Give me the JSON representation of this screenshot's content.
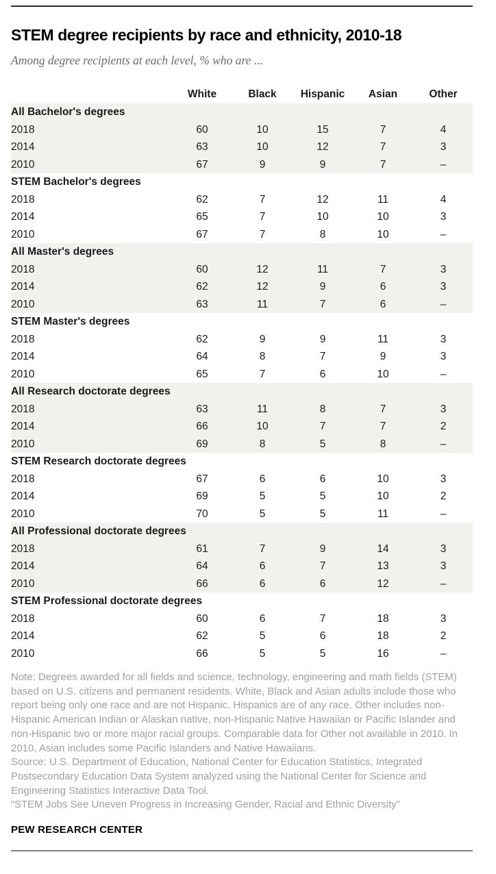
{
  "chart_data": {
    "type": "table",
    "title": "STEM degree recipients by race and ethnicity, 2010-18",
    "subtitle": "Among degree recipients at each level, % who are ...",
    "columns": [
      "White",
      "Black",
      "Hispanic",
      "Asian",
      "Other"
    ],
    "missing_value_symbol": "–",
    "values_unit": "percent",
    "sections": [
      {
        "label": "All Bachelor's degrees",
        "shaded": true,
        "rows": [
          {
            "year": "2018",
            "values": [
              "60",
              "10",
              "15",
              "7",
              "4"
            ]
          },
          {
            "year": "2014",
            "values": [
              "63",
              "10",
              "12",
              "7",
              "3"
            ]
          },
          {
            "year": "2010",
            "values": [
              "67",
              "9",
              "9",
              "7",
              "–"
            ]
          }
        ]
      },
      {
        "label": "STEM Bachelor's degrees",
        "shaded": false,
        "rows": [
          {
            "year": "2018",
            "values": [
              "62",
              "7",
              "12",
              "11",
              "4"
            ]
          },
          {
            "year": "2014",
            "values": [
              "65",
              "7",
              "10",
              "10",
              "3"
            ]
          },
          {
            "year": "2010",
            "values": [
              "67",
              "7",
              "8",
              "10",
              "–"
            ]
          }
        ]
      },
      {
        "label": "All Master's degrees",
        "shaded": true,
        "rows": [
          {
            "year": "2018",
            "values": [
              "60",
              "12",
              "11",
              "7",
              "3"
            ]
          },
          {
            "year": "2014",
            "values": [
              "62",
              "12",
              "9",
              "6",
              "3"
            ]
          },
          {
            "year": "2010",
            "values": [
              "63",
              "11",
              "7",
              "6",
              "–"
            ]
          }
        ]
      },
      {
        "label": "STEM Master's degrees",
        "shaded": false,
        "rows": [
          {
            "year": "2018",
            "values": [
              "62",
              "9",
              "9",
              "11",
              "3"
            ]
          },
          {
            "year": "2014",
            "values": [
              "64",
              "8",
              "7",
              "9",
              "3"
            ]
          },
          {
            "year": "2010",
            "values": [
              "65",
              "7",
              "6",
              "10",
              "–"
            ]
          }
        ]
      },
      {
        "label": "All Research doctorate degrees",
        "shaded": true,
        "rows": [
          {
            "year": "2018",
            "values": [
              "63",
              "11",
              "8",
              "7",
              "3"
            ]
          },
          {
            "year": "2014",
            "values": [
              "66",
              "10",
              "7",
              "7",
              "2"
            ]
          },
          {
            "year": "2010",
            "values": [
              "69",
              "8",
              "5",
              "8",
              "–"
            ]
          }
        ]
      },
      {
        "label": "STEM Research doctorate degrees",
        "shaded": false,
        "rows": [
          {
            "year": "2018",
            "values": [
              "67",
              "6",
              "6",
              "10",
              "3"
            ]
          },
          {
            "year": "2014",
            "values": [
              "69",
              "5",
              "5",
              "10",
              "2"
            ]
          },
          {
            "year": "2010",
            "values": [
              "70",
              "5",
              "5",
              "11",
              "–"
            ]
          }
        ]
      },
      {
        "label": "All Professional doctorate degrees",
        "shaded": true,
        "rows": [
          {
            "year": "2018",
            "values": [
              "61",
              "7",
              "9",
              "14",
              "3"
            ]
          },
          {
            "year": "2014",
            "values": [
              "64",
              "6",
              "7",
              "13",
              "3"
            ]
          },
          {
            "year": "2010",
            "values": [
              "66",
              "6",
              "6",
              "12",
              "–"
            ]
          }
        ]
      },
      {
        "label": "STEM Professional doctorate degrees",
        "shaded": false,
        "rows": [
          {
            "year": "2018",
            "values": [
              "60",
              "6",
              "7",
              "18",
              "3"
            ]
          },
          {
            "year": "2014",
            "values": [
              "62",
              "5",
              "6",
              "18",
              "2"
            ]
          },
          {
            "year": "2010",
            "values": [
              "66",
              "5",
              "5",
              "16",
              "–"
            ]
          }
        ]
      }
    ]
  },
  "footer": {
    "note": "Note: Degrees awarded for all fields and science, technology, engineering and math fields (STEM) based on U.S. citizens and permanent residents. White, Black and Asian adults include those who report being only one race and are not Hispanic. Hispanics are of any race. Other includes non-Hispanic American Indian or Alaskan native, non-Hispanic Native Hawaiian or Pacific Islander and non-Hispanic two or more major racial groups. Comparable data for Other not available in 2010. In 2010, Asian includes some Pacific Islanders and Native Hawaiians.",
    "source": "Source: U.S. Department of Education, National Center for Education Statistics, Integrated Postsecondary Education Data System analyzed using the National Center for Science and Engineering Statistics Interactive Data Tool.",
    "citation": "“STEM Jobs See Uneven Progress in Increasing Gender, Racial and Ethnic Diversity”",
    "brand": "PEW RESEARCH CENTER"
  },
  "colors": {
    "shaded_row": "#f1f1ee",
    "title_text": "#000000",
    "subtitle_text": "#6b6b6b",
    "body_text": "#1a1a1a",
    "note_text": "#a0a0a0",
    "rule_top": "#2e2e2e",
    "rule_bottom": "#808080"
  }
}
